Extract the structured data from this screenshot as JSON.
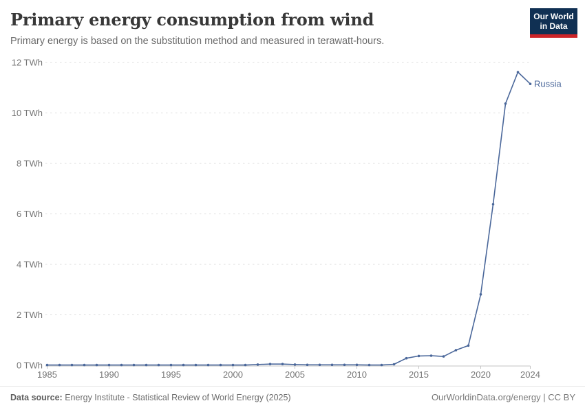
{
  "header": {
    "title": "Primary energy consumption from wind",
    "subtitle": "Primary energy is based on the substitution method and measured in terawatt-hours.",
    "logo": {
      "line1": "Our World",
      "line2": "in Data",
      "bg_color": "#103053",
      "stripe_color": "#cc2428"
    }
  },
  "chart_data": {
    "type": "line",
    "title": "Primary energy consumption from wind",
    "unit": "TWh",
    "xlim": [
      1985,
      2024
    ],
    "ylim": [
      0,
      12
    ],
    "grid": "horizontal-dashed",
    "legend_position": "end-of-line-label",
    "x_ticks": [
      {
        "v": 1985,
        "label": "1985"
      },
      {
        "v": 1990,
        "label": "1990"
      },
      {
        "v": 1995,
        "label": "1995"
      },
      {
        "v": 2000,
        "label": "2000"
      },
      {
        "v": 2005,
        "label": "2005"
      },
      {
        "v": 2010,
        "label": "2010"
      },
      {
        "v": 2015,
        "label": "2015"
      },
      {
        "v": 2020,
        "label": "2020"
      },
      {
        "v": 2024,
        "label": "2024"
      }
    ],
    "y_ticks": [
      {
        "v": 0,
        "label": "0 TWh"
      },
      {
        "v": 2,
        "label": "2 TWh"
      },
      {
        "v": 4,
        "label": "4 TWh"
      },
      {
        "v": 6,
        "label": "6 TWh"
      },
      {
        "v": 8,
        "label": "8 TWh"
      },
      {
        "v": 10,
        "label": "10 TWh"
      },
      {
        "v": 12,
        "label": "12 TWh"
      }
    ],
    "series": [
      {
        "name": "Russia",
        "color": "#4a679a",
        "x": [
          1985,
          1986,
          1987,
          1988,
          1989,
          1990,
          1991,
          1992,
          1993,
          1994,
          1995,
          1996,
          1997,
          1998,
          1999,
          2000,
          2001,
          2002,
          2003,
          2004,
          2005,
          2006,
          2007,
          2008,
          2009,
          2010,
          2011,
          2012,
          2013,
          2014,
          2015,
          2016,
          2017,
          2018,
          2019,
          2020,
          2021,
          2022,
          2023,
          2024
        ],
        "values": [
          0.01,
          0.01,
          0.01,
          0.01,
          0.01,
          0.01,
          0.01,
          0.01,
          0.01,
          0.01,
          0.01,
          0.01,
          0.01,
          0.01,
          0.01,
          0.01,
          0.01,
          0.03,
          0.05,
          0.05,
          0.03,
          0.02,
          0.02,
          0.02,
          0.02,
          0.02,
          0.01,
          0.01,
          0.04,
          0.28,
          0.37,
          0.38,
          0.35,
          0.6,
          0.78,
          2.81,
          6.38,
          10.37,
          11.62,
          11.15
        ]
      }
    ]
  },
  "footer": {
    "source_label": "Data source:",
    "source_text": " Energy Institute - Statistical Review of World Energy (2025)",
    "right_text": "OurWorldinData.org/energy | CC BY"
  }
}
